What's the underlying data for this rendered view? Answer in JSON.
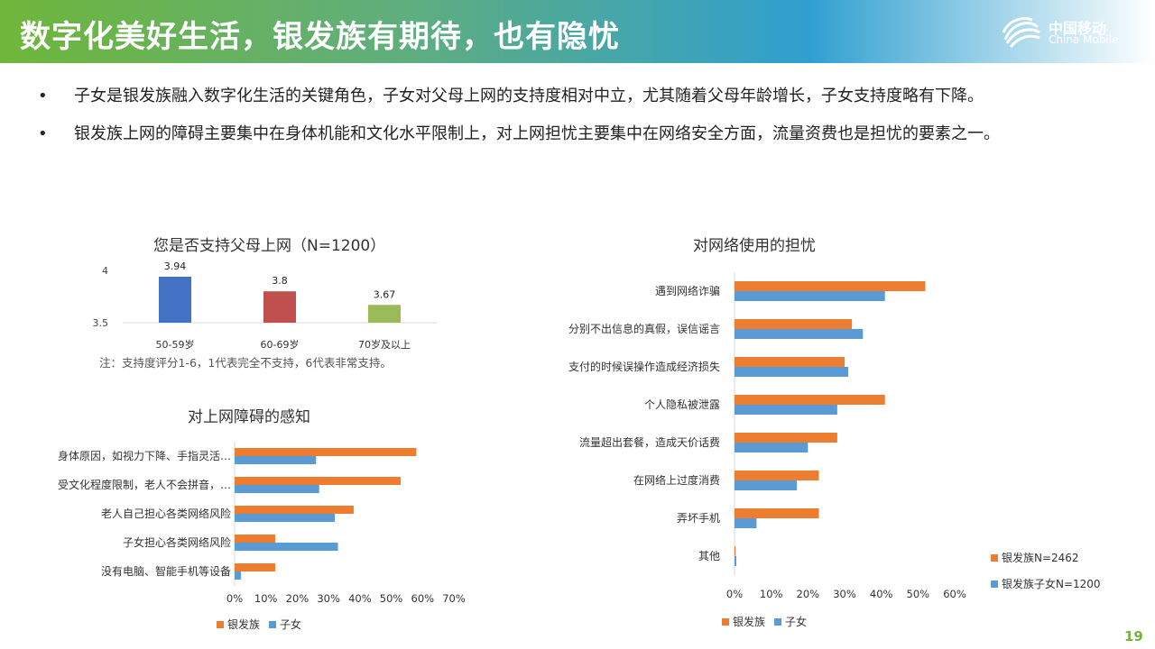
{
  "header": {
    "title": "数字化美好生活，银发族有期待，也有隐忧",
    "logo_cn": "中国移动",
    "logo_en": "China Mobile"
  },
  "bullets": [
    "子女是银发族融入数字化生活的关键角色，子女对父母上网的支持度相对中立，尤其随着父母年龄增长，子女支持度略有下降。",
    "银发族上网的障碍主要集中在身体机能和文化水平限制上，对上网担忧主要集中在网络安全方面，流量资费也是担忧的要素之一。"
  ],
  "note": "注：支持度评分1-6，1代表完全不支持，6代表非常支持。",
  "page_number": "19",
  "colors": {
    "orange": "#ED7D31",
    "blue": "#5B9BD5",
    "bar1": "#4472C4",
    "bar2": "#C0504D",
    "bar3": "#9BBB59"
  },
  "chart_data": [
    {
      "type": "bar",
      "title": "您是否支持父母上网（N=1200）",
      "categories": [
        "50-59岁",
        "60-69岁",
        "70岁及以上"
      ],
      "values": [
        3.94,
        3.8,
        3.67
      ],
      "value_labels": [
        "3.94",
        "3.8",
        "3.67"
      ],
      "yticks": [
        "4",
        "3.5"
      ],
      "ylim": [
        3.5,
        4.0
      ]
    },
    {
      "type": "bar",
      "orientation": "horizontal",
      "title": "对上网障碍的感知",
      "categories": [
        "身体原因，如视力下降、手指灵活…",
        "受文化程度限制，老人不会拼音，…",
        "老人自己担心各类网络风险",
        "子女担心各类网络风险",
        "没有电脑、智能手机等设备"
      ],
      "series": [
        {
          "name": "银发族",
          "values": [
            58,
            53,
            38,
            13,
            13
          ]
        },
        {
          "name": "子女",
          "values": [
            26,
            27,
            32,
            33,
            2
          ]
        }
      ],
      "xticks": [
        "0%",
        "10%",
        "20%",
        "30%",
        "40%",
        "50%",
        "60%",
        "70%"
      ],
      "xlim": [
        0,
        70
      ],
      "legend": "bottom"
    },
    {
      "type": "bar",
      "orientation": "horizontal",
      "title": "对网络使用的担忧",
      "categories": [
        "遇到网络诈骗",
        "分别不出信息的真假，误信谣言",
        "支付的时候误操作造成经济损失",
        "个人隐私被泄露",
        "流量超出套餐，造成天价话费",
        "在网络上过度消费",
        "弄坏手机",
        "其他"
      ],
      "series": [
        {
          "name": "银发族",
          "values": [
            52,
            32,
            30,
            41,
            28,
            23,
            23,
            0.3
          ]
        },
        {
          "name": "子女",
          "values": [
            41,
            35,
            31,
            28,
            20,
            17,
            6,
            0.5
          ]
        }
      ],
      "xticks": [
        "0%",
        "10%",
        "20%",
        "30%",
        "40%",
        "50%",
        "60%"
      ],
      "xlim": [
        0,
        60
      ],
      "legend": "bottom",
      "side_legend": [
        "银发族N=2462",
        "银发族子女N=1200"
      ]
    }
  ]
}
